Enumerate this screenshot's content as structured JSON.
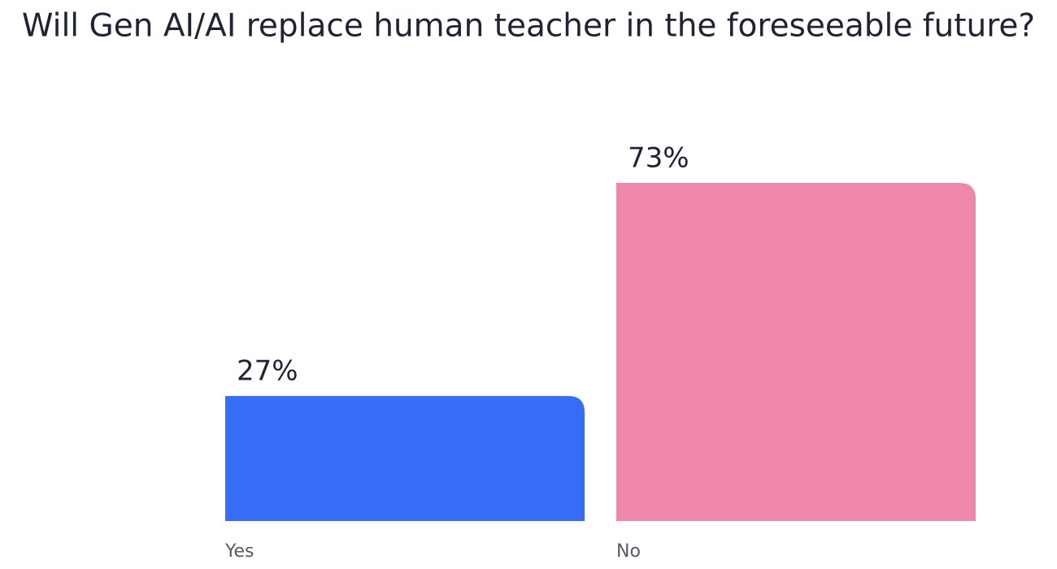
{
  "chart_data": {
    "type": "bar",
    "title": "Will Gen AI/AI replace human teacher in the foreseeable future?",
    "categories": [
      "Yes",
      "No"
    ],
    "values": [
      27,
      73
    ],
    "value_labels": [
      "27%",
      "73%"
    ],
    "colors": [
      "#376cf6",
      "#ef87a8"
    ]
  }
}
